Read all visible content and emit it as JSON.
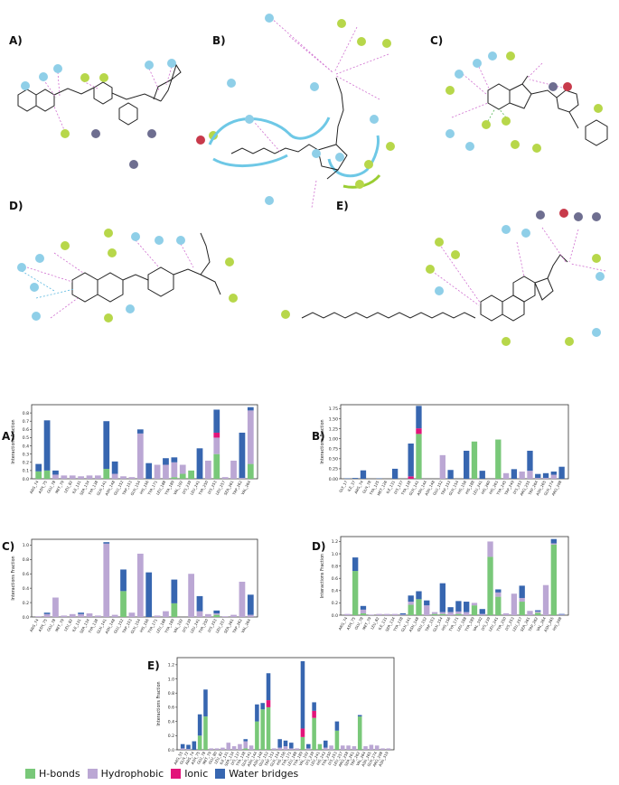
{
  "panel_labels": {
    "top": [
      "A)",
      "B)",
      "C)",
      "D)",
      "E)"
    ],
    "bottom": [
      "A)",
      "B)",
      "C)",
      "D)",
      "E)"
    ]
  },
  "colors": {
    "hbond": "#79c879",
    "hydrophobic": "#bba7d4",
    "ionic": "#e2147a",
    "water": "#3766b0",
    "residue_blue": "#8fcfe8",
    "residue_green": "#b7d74a",
    "residue_grey": "#6e6e90",
    "residue_red": "#c83a4b"
  },
  "legend": [
    "H-bonds",
    "Hydrophobic",
    "Ionic",
    "Water bridges"
  ],
  "ylabel": "Interactions Fraction",
  "chart_data": [
    {
      "type": "bar",
      "panel": "A)",
      "ylim": [
        0,
        0.9
      ],
      "yticks": [
        "0.0",
        "0.1",
        "0.2",
        "0.3",
        "0.4",
        "0.5",
        "0.6",
        "0.7",
        "0.8"
      ],
      "categories": [
        "ARG_74",
        "ASN_75",
        "GLU_78",
        "MET_79",
        "LEU_82",
        "ILE_131",
        "SER_134",
        "TYR_138",
        "GLN_141",
        "ASN_148",
        "GLU_152",
        "TRP_153",
        "GLN_154",
        "HIS_156",
        "TYR_171",
        "LEU_188",
        "TYR_189",
        "VAL_192",
        "LYS_239",
        "LEU_241",
        "TYR_250",
        "LYS_253",
        "LEU_257",
        "SER_261",
        "TRP_262",
        "VAL_264"
      ],
      "series": [
        {
          "name": "H-bonds",
          "values": [
            0.09,
            0.1,
            0.0,
            0.0,
            0.0,
            0.0,
            0.0,
            0.0,
            0.12,
            0.0,
            0.0,
            0.0,
            0.0,
            0.0,
            0.0,
            0.0,
            0.02,
            0.06,
            0.1,
            0.0,
            0.0,
            0.3,
            0.0,
            0.0,
            0.0,
            0.18
          ]
        },
        {
          "name": "Hydrophobic",
          "values": [
            0.0,
            0.0,
            0.05,
            0.04,
            0.04,
            0.03,
            0.04,
            0.04,
            0.0,
            0.06,
            0.03,
            0.02,
            0.55,
            0.0,
            0.17,
            0.17,
            0.18,
            0.11,
            0.0,
            0.0,
            0.22,
            0.2,
            0.02,
            0.22,
            0.01,
            0.65
          ]
        },
        {
          "name": "Ionic",
          "values": [
            0,
            0,
            0,
            0,
            0,
            0,
            0,
            0,
            0,
            0,
            0,
            0,
            0,
            0,
            0,
            0,
            0,
            0,
            0,
            0,
            0,
            0.06,
            0,
            0,
            0,
            0
          ]
        },
        {
          "name": "Water bridges",
          "values": [
            0.09,
            0.61,
            0.05,
            0.0,
            0.0,
            0.0,
            0.0,
            0.0,
            0.58,
            0.15,
            0.0,
            0.0,
            0.05,
            0.19,
            0.0,
            0.08,
            0.06,
            0.0,
            0.0,
            0.37,
            0.0,
            0.28,
            0.0,
            0.0,
            0.55,
            0.04
          ]
        }
      ]
    },
    {
      "type": "bar",
      "panel": "B)",
      "ylim": [
        0,
        1.85
      ],
      "yticks": [
        "0.00",
        "0.25",
        "0.50",
        "0.75",
        "1.00",
        "1.25",
        "1.50",
        "1.75"
      ],
      "categories": [
        "GLY_17",
        "ILE_37",
        "ARG_74",
        "GLN_78",
        "TYR_125",
        "MET_126",
        "ILE_131",
        "LYS_137",
        "TYR_138",
        "GLN_141",
        "ASN_144",
        "ASN_148",
        "GLU_152",
        "TRP_153",
        "GLN_154",
        "HIS_156",
        "HIS_188",
        "LEU_241",
        "HIS_260",
        "HIS_261",
        "TYR_245",
        "TRP_249",
        "LYS_253",
        "ARG_255",
        "TRP_264",
        "ASN_265",
        "GLN_274",
        "ARG_298"
      ],
      "series": [
        {
          "name": "H-bonds",
          "values": [
            0,
            0,
            0,
            0,
            0,
            0,
            0,
            0,
            0,
            1.12,
            0,
            0,
            0,
            0,
            0,
            0,
            0.93,
            0,
            0,
            0.98,
            0,
            0,
            0,
            0,
            0,
            0,
            0,
            0
          ]
        },
        {
          "name": "Hydrophobic",
          "values": [
            0,
            0,
            0,
            0,
            0,
            0,
            0,
            0,
            0,
            0,
            0,
            0,
            0.59,
            0,
            0,
            0,
            0,
            0,
            0,
            0,
            0.14,
            0,
            0.18,
            0.2,
            0.02,
            0.02,
            0.1,
            0
          ]
        },
        {
          "name": "Ionic",
          "values": [
            0,
            0,
            0,
            0,
            0,
            0,
            0,
            0,
            0.06,
            0.14,
            0,
            0,
            0,
            0,
            0,
            0,
            0,
            0,
            0,
            0,
            0,
            0,
            0,
            0,
            0,
            0,
            0,
            0
          ]
        },
        {
          "name": "Water bridges",
          "values": [
            0.01,
            0.02,
            0.21,
            0,
            0.01,
            0,
            0.25,
            0,
            0.82,
            0.56,
            0,
            0,
            0,
            0.22,
            0,
            0.7,
            0,
            0.2,
            0,
            0,
            0,
            0.24,
            0,
            0.5,
            0.1,
            0.12,
            0.08,
            0.3
          ]
        }
      ]
    },
    {
      "type": "bar",
      "panel": "C)",
      "ylim": [
        0,
        1.08
      ],
      "yticks": [
        "0.0",
        "0.2",
        "0.4",
        "0.6",
        "0.8",
        "1.0"
      ],
      "categories": [
        "ARG_74",
        "ASN_75",
        "GLU_78",
        "MET_79",
        "LEU_82",
        "ILE_131",
        "SER_134",
        "TYR_138",
        "GLN_141",
        "ASN_148",
        "GLU_152",
        "TRP_153",
        "GLN_154",
        "HIS_156",
        "TYR_171",
        "LEU_188",
        "TYR_189",
        "VAL_192",
        "LYS_239",
        "LEU_241",
        "TYR_250",
        "LYS_253",
        "LEU_257",
        "SER_261",
        "TRP_262",
        "VAL_264"
      ],
      "series": [
        {
          "name": "H-bonds",
          "values": [
            0,
            0,
            0,
            0,
            0,
            0,
            0,
            0,
            0,
            0,
            0.36,
            0,
            0,
            0,
            0,
            0,
            0.19,
            0,
            0,
            0,
            0,
            0.03,
            0,
            0,
            0,
            0
          ]
        },
        {
          "name": "Hydrophobic",
          "values": [
            0.01,
            0.04,
            0.27,
            0.02,
            0.04,
            0.04,
            0.05,
            0.02,
            1.02,
            0.03,
            0.0,
            0.06,
            0.88,
            0.0,
            0.02,
            0.08,
            0.0,
            0.0,
            0.6,
            0.08,
            0.04,
            0.02,
            0.01,
            0.03,
            0.49,
            0.03
          ]
        },
        {
          "name": "Ionic",
          "values": [
            0,
            0,
            0,
            0,
            0,
            0,
            0,
            0,
            0,
            0,
            0,
            0,
            0,
            0,
            0,
            0,
            0,
            0,
            0,
            0,
            0,
            0,
            0,
            0,
            0,
            0
          ]
        },
        {
          "name": "Water bridges",
          "values": [
            0.0,
            0.02,
            0.0,
            0.0,
            0.0,
            0.02,
            0.0,
            0.0,
            0.02,
            0.0,
            0.3,
            0.0,
            0.0,
            0.62,
            0.0,
            0.0,
            0.33,
            0.0,
            0.0,
            0.21,
            0.0,
            0.04,
            0.0,
            0.0,
            0.0,
            0.28
          ]
        }
      ]
    },
    {
      "type": "bar",
      "panel": "D)",
      "ylim": [
        0,
        1.28
      ],
      "yticks": [
        "0.0",
        "0.2",
        "0.4",
        "0.6",
        "0.8",
        "1.0",
        "1.2"
      ],
      "categories": [
        "ARG_74",
        "ASN_75",
        "GLU_78",
        "MET_79",
        "LEU_82",
        "ILE_131",
        "SER_134",
        "TYR_138",
        "GLN_141",
        "ASN_148",
        "GLU_152",
        "TRP_153",
        "GLN_154",
        "HIS_156",
        "TYR_171",
        "LEU_188",
        "TYR_189",
        "VAL_192",
        "LYS_239",
        "LEU_241",
        "TYR_250",
        "LYS_253",
        "LEU_257",
        "SER_261",
        "TRP_262",
        "VAL_264",
        "ASN_265",
        "HIS_298"
      ],
      "series": [
        {
          "name": "H-bonds",
          "values": [
            0.0,
            0.72,
            0.03,
            0.0,
            0.0,
            0.0,
            0.0,
            0.0,
            0.17,
            0.26,
            0.0,
            0.02,
            0.02,
            0.0,
            0.02,
            0.0,
            0.16,
            0.0,
            0.95,
            0.3,
            0.0,
            0.0,
            0.22,
            0.0,
            0.04,
            0.0,
            1.15,
            0.0
          ]
        },
        {
          "name": "Hydrophobic",
          "values": [
            0.02,
            0.0,
            0.06,
            0.01,
            0.02,
            0.02,
            0.02,
            0.01,
            0.05,
            0.0,
            0.16,
            0.03,
            0.03,
            0.05,
            0.04,
            0.05,
            0.04,
            0.02,
            0.25,
            0.07,
            0.03,
            0.35,
            0.06,
            0.07,
            0.02,
            0.49,
            0.02,
            0.01
          ]
        },
        {
          "name": "Ionic",
          "values": [
            0,
            0,
            0,
            0,
            0,
            0,
            0,
            0,
            0,
            0,
            0,
            0,
            0,
            0,
            0,
            0,
            0,
            0,
            0,
            0,
            0,
            0,
            0,
            0,
            0,
            0,
            0,
            0
          ]
        },
        {
          "name": "Water bridges",
          "values": [
            0.0,
            0.22,
            0.06,
            0.0,
            0.0,
            0.0,
            0.0,
            0.02,
            0.1,
            0.13,
            0.08,
            0.0,
            0.47,
            0.08,
            0.17,
            0.17,
            0.0,
            0.08,
            0.0,
            0.05,
            0.0,
            0.0,
            0.2,
            0.0,
            0.02,
            0.0,
            0.07,
            0.01
          ]
        }
      ]
    },
    {
      "type": "bar",
      "panel": "E)",
      "ylim": [
        0,
        1.3
      ],
      "yticks": [
        "0.0",
        "0.2",
        "0.4",
        "0.6",
        "0.8",
        "1.0",
        "1.2"
      ],
      "categories": [
        "ARG_55",
        "GLN_72",
        "ARG_74",
        "ASN_75",
        "GLU_78",
        "MET_79",
        "GLU_80",
        "LEU_82",
        "ILE_131",
        "SER_134",
        "LYS_137",
        "TYR_138",
        "GLN_141",
        "ASN_144",
        "ASN_148",
        "GLU_152",
        "TRP_153",
        "GLN_154",
        "HIS_156",
        "TYR_171",
        "LEU_188",
        "TYR_189",
        "VAL_192",
        "LYS_239",
        "LEU_241",
        "HIS_243",
        "TYR_250",
        "LYS_253",
        "LEU_257",
        "ARG_258",
        "SER_261",
        "TRP_262",
        "VAL_264",
        "ASN_265",
        "GLN_274",
        "ARG_298",
        "ASN_319"
      ],
      "series": [
        {
          "name": "H-bonds",
          "values": [
            0,
            0,
            0,
            0.2,
            0.47,
            0,
            0,
            0,
            0,
            0,
            0,
            0.02,
            0.0,
            0.4,
            0.57,
            0.6,
            0,
            0,
            0,
            0,
            0,
            0.18,
            0,
            0.45,
            0.08,
            0,
            0,
            0.27,
            0,
            0,
            0,
            0.47,
            0,
            0,
            0,
            0,
            0
          ]
        },
        {
          "name": "Hydrophobic",
          "values": [
            0.02,
            0.01,
            0.0,
            0.0,
            0.0,
            0.02,
            0.02,
            0.03,
            0.1,
            0.05,
            0.08,
            0.1,
            0.06,
            0.0,
            0.0,
            0.0,
            0.02,
            0.03,
            0.05,
            0.02,
            0.02,
            0.0,
            0.02,
            0.0,
            0.0,
            0.03,
            0.06,
            0.0,
            0.06,
            0.06,
            0.05,
            0.0,
            0.05,
            0.07,
            0.06,
            0.02,
            0.02
          ]
        },
        {
          "name": "Ionic",
          "values": [
            0,
            0,
            0,
            0,
            0,
            0,
            0,
            0,
            0,
            0,
            0,
            0,
            0,
            0,
            0,
            0.1,
            0,
            0,
            0,
            0,
            0,
            0.12,
            0,
            0.1,
            0,
            0,
            0,
            0,
            0,
            0,
            0,
            0,
            0,
            0,
            0,
            0,
            0
          ]
        },
        {
          "name": "Water bridges",
          "values": [
            0.06,
            0.06,
            0.12,
            0.3,
            0.38,
            0.0,
            0.0,
            0.0,
            0.0,
            0.0,
            0.0,
            0.03,
            0.0,
            0.24,
            0.09,
            0.38,
            0.0,
            0.12,
            0.08,
            0.08,
            0.0,
            0.95,
            0.06,
            0.12,
            0.0,
            0.1,
            0.0,
            0.13,
            0.0,
            0.0,
            0.0,
            0.02,
            0.0,
            0.0,
            0.0,
            0.0,
            0.0
          ]
        }
      ]
    }
  ]
}
